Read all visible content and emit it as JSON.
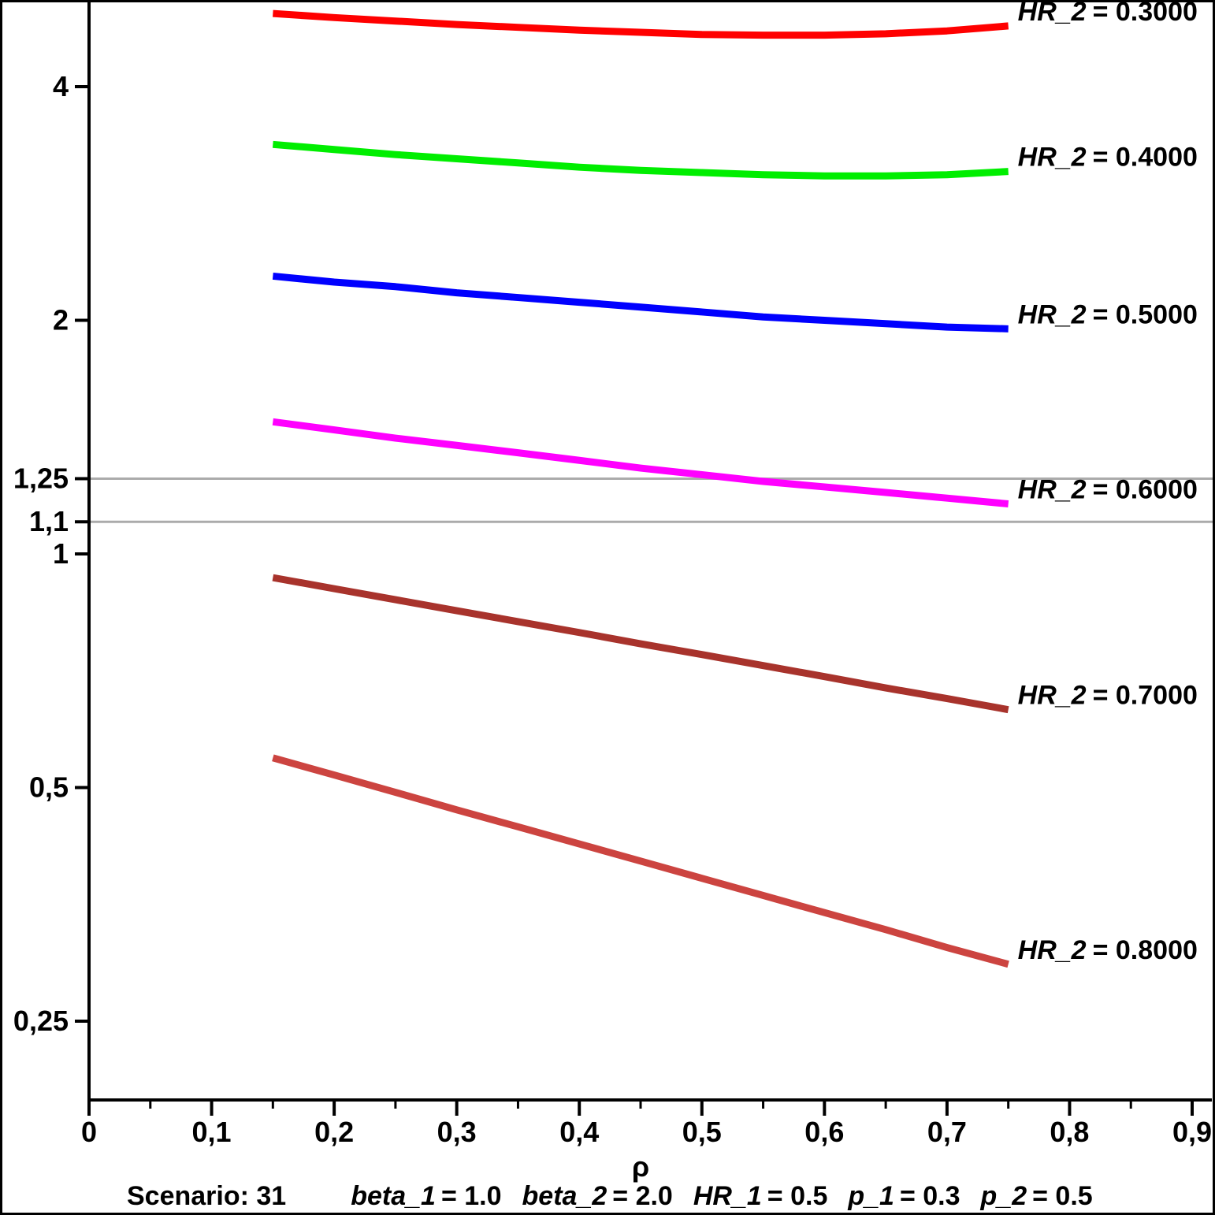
{
  "colors": {
    "axis": "#000000",
    "grid": "#ababab",
    "background": "#ffffff"
  },
  "chart_data": {
    "type": "line",
    "title": "",
    "xlabel": "ρ",
    "ylabel": "",
    "grid": "reference lines only",
    "legend_position": "right-of-line-ends",
    "x_axis": {
      "min": 0,
      "max": 0.9,
      "major_ticks": [
        0,
        0.1,
        0.2,
        0.3,
        0.4,
        0.5,
        0.6,
        0.7,
        0.8,
        0.9
      ],
      "tick_labels": [
        "0",
        "0,1",
        "0,2",
        "0,3",
        "0,4",
        "0,5",
        "0,6",
        "0,7",
        "0,8",
        "0,9"
      ],
      "minor_tick_step": 0.05
    },
    "y_axis": {
      "scale": "log2",
      "ticks": [
        4,
        2,
        1.25,
        1.1,
        1,
        0.5,
        0.25
      ],
      "tick_labels": [
        "4",
        "2",
        "1,25",
        "1,1",
        "1",
        "0,5",
        "0,25"
      ],
      "display_range": [
        0.198,
        5.15
      ]
    },
    "reference_lines": [
      1.25,
      1.1
    ],
    "x": [
      0.15,
      0.2,
      0.25,
      0.3,
      0.35,
      0.4,
      0.45,
      0.5,
      0.55,
      0.6,
      0.65,
      0.7,
      0.75
    ],
    "series": [
      {
        "label_var": "HR_2",
        "label_value": "= 0.3000",
        "label": "HR_2 = 0.3000",
        "color": "#ff0000",
        "values": [
          4.97,
          4.91,
          4.86,
          4.81,
          4.77,
          4.73,
          4.7,
          4.67,
          4.66,
          4.66,
          4.68,
          4.72,
          4.79
        ]
      },
      {
        "label_var": "HR_2",
        "label_value": "= 0.4000",
        "label": "HR_2 = 0.4000",
        "color": "#00ee00",
        "values": [
          3.37,
          3.32,
          3.27,
          3.23,
          3.19,
          3.15,
          3.12,
          3.1,
          3.08,
          3.07,
          3.07,
          3.08,
          3.11
        ]
      },
      {
        "label_var": "HR_2",
        "label_value": "= 0.5000",
        "label": "HR_2 = 0.5000",
        "color": "#0000ff",
        "values": [
          2.28,
          2.24,
          2.21,
          2.17,
          2.14,
          2.11,
          2.08,
          2.05,
          2.02,
          2.0,
          1.98,
          1.96,
          1.95
        ]
      },
      {
        "label_var": "HR_2",
        "label_value": "= 0.6000",
        "label": "HR_2 = 0.6000",
        "color": "#ff00ff",
        "values": [
          1.48,
          1.445,
          1.41,
          1.38,
          1.35,
          1.32,
          1.29,
          1.265,
          1.24,
          1.22,
          1.2,
          1.18,
          1.16
        ]
      },
      {
        "label_var": "HR_2",
        "label_value": "= 0.7000",
        "label": "HR_2 = 0.7000",
        "color": "#a8332c",
        "values": [
          0.932,
          0.902,
          0.873,
          0.845,
          0.818,
          0.792,
          0.766,
          0.742,
          0.718,
          0.695,
          0.672,
          0.651,
          0.63
        ]
      },
      {
        "label_var": "HR_2",
        "label_value": "= 0.8000",
        "label": "HR_2 = 0.8000",
        "color": "#cc4440",
        "values": [
          0.546,
          0.519,
          0.493,
          0.468,
          0.445,
          0.423,
          0.402,
          0.382,
          0.363,
          0.345,
          0.328,
          0.311,
          0.296
        ]
      }
    ]
  },
  "caption": {
    "scenario": "Scenario: 31",
    "params": [
      {
        "name": "beta_1",
        "value": "= 1.0"
      },
      {
        "name": "beta_2",
        "value": "= 2.0"
      },
      {
        "name": "HR_1",
        "value": "= 0.5"
      },
      {
        "name": "p_1",
        "value": "= 0.3"
      },
      {
        "name": "p_2",
        "value": "= 0.5"
      }
    ]
  }
}
